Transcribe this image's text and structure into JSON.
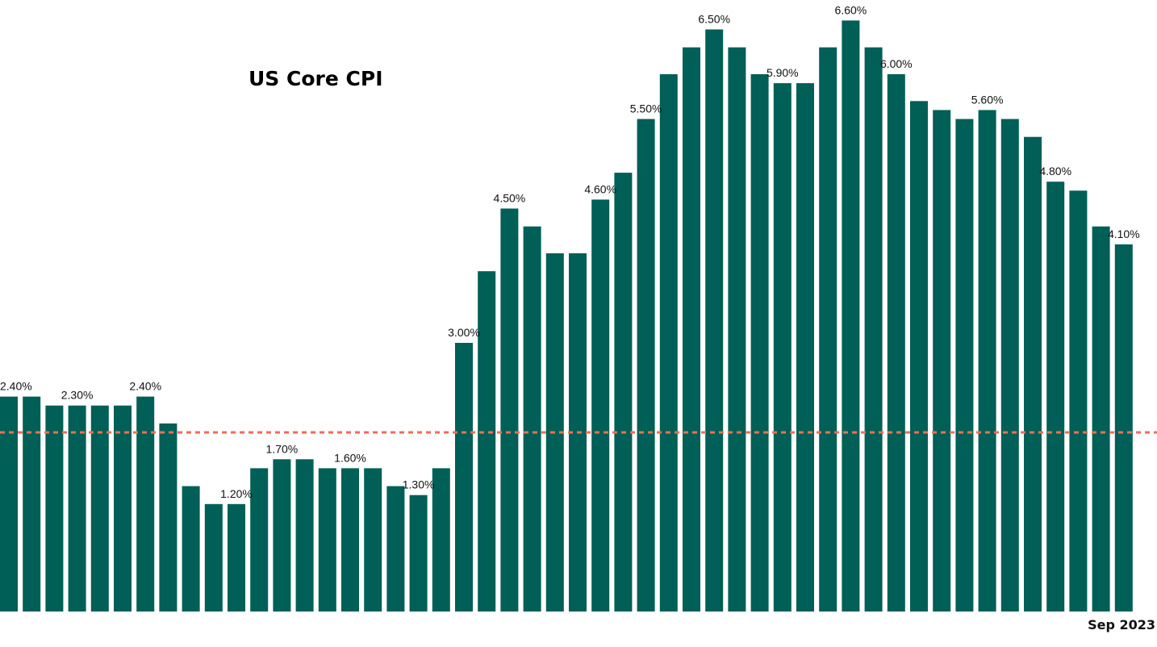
{
  "chart_data": {
    "type": "bar",
    "title": "US Core CPI",
    "xlabel": "",
    "ylabel": "",
    "ylim": [
      0,
      6.8
    ],
    "grid": false,
    "legend": "none",
    "bar_color": "#005f56",
    "reference_line": {
      "value": 2.0,
      "color": "#f26b5b",
      "style": "dashed"
    },
    "values": [
      2.4,
      2.4,
      2.3,
      2.3,
      2.3,
      2.3,
      2.4,
      2.1,
      1.4,
      1.2,
      1.2,
      1.6,
      1.7,
      1.7,
      1.6,
      1.6,
      1.6,
      1.4,
      1.3,
      1.6,
      3.0,
      3.8,
      4.5,
      4.3,
      4.0,
      4.0,
      4.6,
      4.9,
      5.5,
      6.0,
      6.3,
      6.5,
      6.3,
      6.0,
      5.9,
      5.9,
      6.3,
      6.6,
      6.3,
      6.0,
      5.7,
      5.6,
      5.5,
      5.6,
      5.5,
      5.3,
      4.8,
      4.7,
      4.3,
      4.1
    ],
    "data_labels": [
      {
        "index": 0,
        "text": "2.40%"
      },
      {
        "index": 3,
        "text": "2.30%"
      },
      {
        "index": 6,
        "text": "2.40%"
      },
      {
        "index": 10,
        "text": "1.20%"
      },
      {
        "index": 12,
        "text": "1.70%"
      },
      {
        "index": 15,
        "text": "1.60%"
      },
      {
        "index": 18,
        "text": "1.30%"
      },
      {
        "index": 20,
        "text": "3.00%"
      },
      {
        "index": 22,
        "text": "4.50%"
      },
      {
        "index": 26,
        "text": "4.60%"
      },
      {
        "index": 28,
        "text": "5.50%"
      },
      {
        "index": 31,
        "text": "6.50%"
      },
      {
        "index": 34,
        "text": "5.90%"
      },
      {
        "index": 37,
        "text": "6.60%"
      },
      {
        "index": 39,
        "text": "6.00%"
      },
      {
        "index": 43,
        "text": "5.60%"
      },
      {
        "index": 46,
        "text": "4.80%"
      },
      {
        "index": 49,
        "text": "4.10%"
      }
    ],
    "x_tick_labels": [
      {
        "index": 49,
        "text": "Sep 2023"
      }
    ]
  }
}
